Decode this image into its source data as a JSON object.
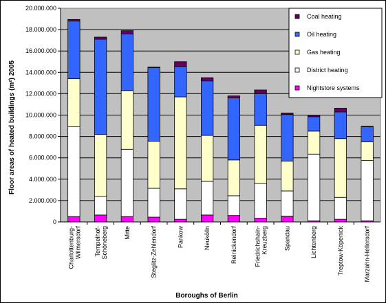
{
  "chart_data": {
    "type": "bar",
    "stacked": true,
    "title": "",
    "xlabel": "Boroughs of Berlin",
    "ylabel": "Floor areas of heated buildings (m²) 2005",
    "ylim": [
      0,
      20000000
    ],
    "yticks": [
      "0",
      "2.000.000",
      "4.000.000",
      "6.000.000",
      "8.000.000",
      "10.000.000",
      "12.000.000",
      "14.000.000",
      "16.000.000",
      "18.000.000",
      "20.000.000"
    ],
    "grid": true,
    "legend_position": "top-right",
    "categories": [
      "Charlottenburg-Wilmersdorf",
      "Tempelhof-Schöneberg",
      "Mitte",
      "Steglitz-Zehlendorf",
      "Pankow",
      "Neukölln",
      "Reinickendorf",
      "Friedrichshain-Kreuzberg",
      "Spandau",
      "Lichtenberg",
      "Treptow-Köpenick",
      "Marzahn-Hellersdorf"
    ],
    "category_lines": [
      [
        "Charlottenburg-",
        "Wilmersdorf"
      ],
      [
        "Tempelhof-",
        "Schöneberg"
      ],
      [
        "Mitte"
      ],
      [
        "Steglitz-Zehlendorf"
      ],
      [
        "Pankow"
      ],
      [
        "Neukölln"
      ],
      [
        "Reinickendorf"
      ],
      [
        "Friedrichshain-",
        "Kreuzberg"
      ],
      [
        "Spandau"
      ],
      [
        "Lichtenberg"
      ],
      [
        "Treptow-Köpenick"
      ],
      [
        "Marzahn-Hellersdorf"
      ]
    ],
    "series": [
      {
        "name": "Nightstore systems",
        "color": "#ff00ff",
        "values": [
          500000,
          650000,
          500000,
          450000,
          250000,
          650000,
          600000,
          350000,
          550000,
          100000,
          250000,
          100000
        ]
      },
      {
        "name": "District heating",
        "color": "#ffffff",
        "values": [
          8400000,
          1750000,
          6300000,
          2700000,
          2850000,
          3150000,
          1850000,
          3250000,
          2350000,
          6250000,
          2050000,
          5650000
        ]
      },
      {
        "name": "Gas heating",
        "color": "#ffffcc",
        "values": [
          4500000,
          5800000,
          5500000,
          4400000,
          8600000,
          4300000,
          3350000,
          5450000,
          2800000,
          2150000,
          5500000,
          1750000
        ]
      },
      {
        "name": "Oil heating",
        "color": "#3366ff",
        "values": [
          5400000,
          8900000,
          5300000,
          6900000,
          2850000,
          5100000,
          5800000,
          2950000,
          4350000,
          1350000,
          2500000,
          1400000
        ]
      },
      {
        "name": "Coal heating",
        "color": "#660066",
        "values": [
          150000,
          200000,
          300000,
          50000,
          450000,
          300000,
          200000,
          350000,
          150000,
          150000,
          350000,
          50000
        ]
      }
    ],
    "legend_order": [
      "Coal heating",
      "Oil heating",
      "Gas heating",
      "District heating",
      "Nightstore systems"
    ]
  }
}
